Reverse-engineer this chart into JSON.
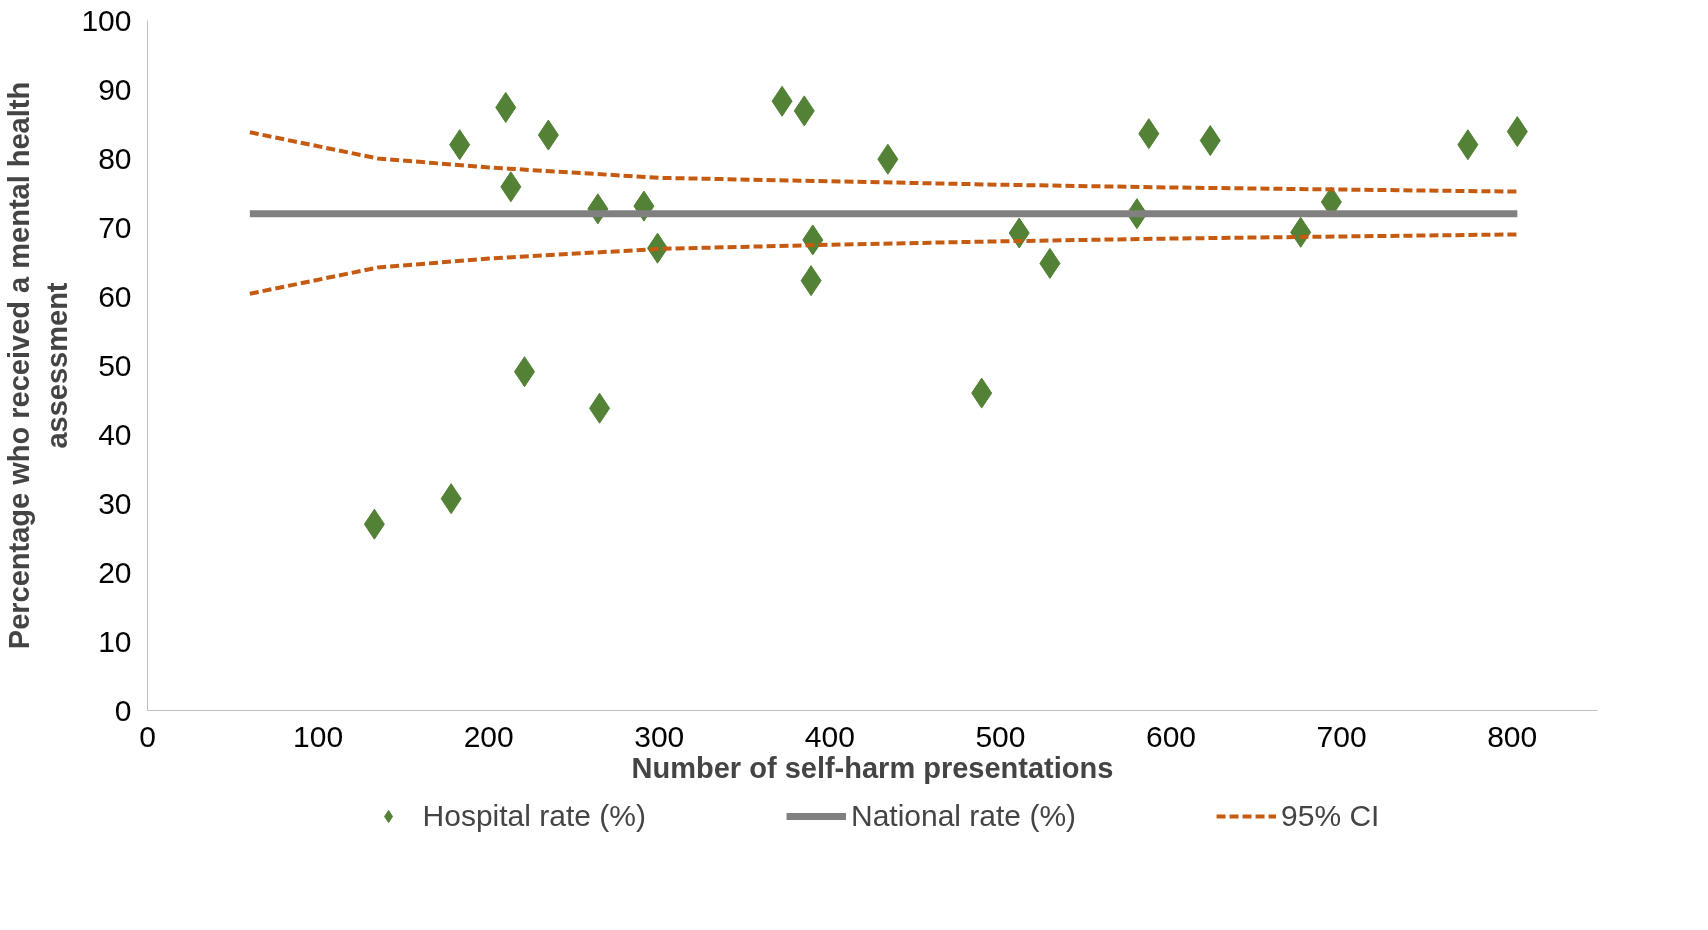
{
  "chart_data": {
    "type": "scatter",
    "xlabel": "Number of self-harm presentations",
    "ylabel": "Percentage who received a mental health assessment",
    "xlim": [
      0,
      850
    ],
    "xticks": [
      0,
      100,
      200,
      300,
      400,
      500,
      600,
      700,
      800
    ],
    "ylim": [
      0,
      100
    ],
    "yticks": [
      0,
      10,
      20,
      30,
      40,
      50,
      60,
      70,
      80,
      90,
      100
    ],
    "grid": false,
    "legend": "bottom",
    "series": [
      {
        "name": "Hospital rate (%)",
        "marker": "diamond",
        "color": "#538135",
        "x": [
          133,
          178,
          183,
          210,
          213,
          221,
          235,
          264,
          265,
          291,
          299,
          372,
          385,
          390,
          389,
          434,
          489,
          511,
          529,
          580,
          587,
          623,
          676,
          694,
          774,
          803
        ],
        "values": [
          27.0,
          30.7,
          82.0,
          87.4,
          75.9,
          49.1,
          83.4,
          72.7,
          43.8,
          73.1,
          67.0,
          88.3,
          86.9,
          68.2,
          62.3,
          79.9,
          46.0,
          69.2,
          64.8,
          72.0,
          83.6,
          82.6,
          69.3,
          73.7,
          82.0,
          83.9
        ]
      },
      {
        "name": "National rate (%)",
        "type": "line",
        "line_style": "solid",
        "color": "#808080",
        "x": [
          60,
          803
        ],
        "values": [
          72.0,
          72.0
        ]
      },
      {
        "name": "95% CI",
        "type": "line",
        "line_style": "dashed",
        "color": "#c55a11",
        "x": [
          60,
          135,
          200,
          300,
          400,
          500,
          600,
          700,
          803
        ],
        "values": [
          83.8,
          80.0,
          78.7,
          77.2,
          76.7,
          76.2,
          75.8,
          75.5,
          75.2
        ]
      },
      {
        "type": "line",
        "line_style": "dashed",
        "color": "#c55a11",
        "x": [
          60,
          135,
          200,
          300,
          400,
          500,
          600,
          700,
          803
        ],
        "values": [
          60.4,
          64.2,
          65.5,
          66.9,
          67.5,
          68.0,
          68.4,
          68.7,
          69.0
        ]
      }
    ]
  }
}
